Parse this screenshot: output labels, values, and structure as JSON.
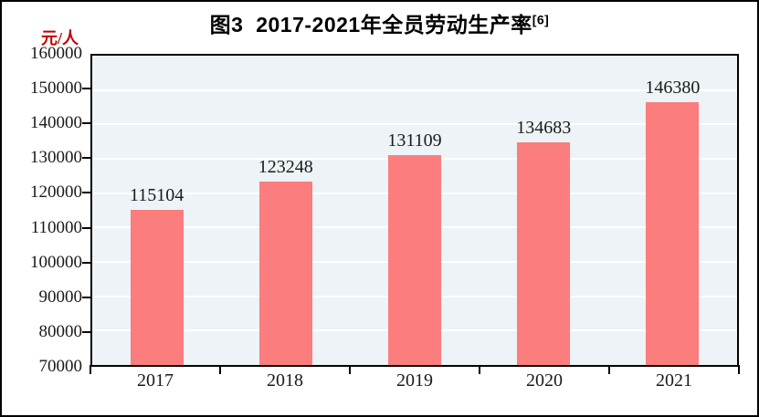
{
  "title": {
    "text": "图3  2017-2021年全员劳动生产率",
    "superscript": "[6]"
  },
  "y_axis_unit": "元/人",
  "chart_data": {
    "type": "bar",
    "categories": [
      "2017",
      "2018",
      "2019",
      "2020",
      "2021"
    ],
    "values": [
      115104,
      123248,
      131109,
      134683,
      146380
    ],
    "data_labels": [
      "115104",
      "123248",
      "131109",
      "134683",
      "146380"
    ],
    "title": "图3  2017-2021年全员劳动生产率[6]",
    "xlabel": "",
    "ylabel": "元/人",
    "ylim": [
      70000,
      160000
    ],
    "ytick_step": 10000,
    "ytick_labels": [
      "70000",
      "80000",
      "90000",
      "100000",
      "110000",
      "120000",
      "130000",
      "140000",
      "150000",
      "160000"
    ],
    "grid": true,
    "legend": "none",
    "colors": {
      "bar": "#FB7D7D",
      "plot_background": "#EDF3F6",
      "gridline": "#FFFFFF",
      "axis_border": "#000000",
      "unit_label": "#C00000",
      "text": "#1A1A1A"
    }
  }
}
